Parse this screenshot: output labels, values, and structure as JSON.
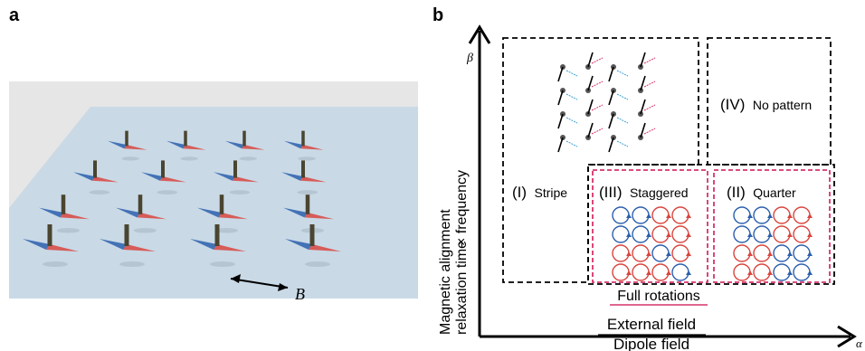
{
  "panels": {
    "a": {
      "label": "a",
      "field_label": "B"
    },
    "b": {
      "label": "b",
      "y_symbol": "β",
      "x_symbol": "α",
      "y_axis_line1": "Magnetic alignment",
      "y_axis_line2": "relaxation time",
      "y_axis_suffix": "× frequency",
      "x_axis_numerator": "External field",
      "x_axis_denominator": "Dipole field",
      "regions": {
        "stripe_roman": "(I)",
        "stripe_name": "Stripe",
        "staggered_roman": "(III)",
        "staggered_name": "Staggered",
        "quarter_roman": "(II)",
        "quarter_name": "Quarter",
        "none_roman": "(IV)",
        "none_name": "No pattern"
      },
      "full_rotations": "Full rotations"
    }
  },
  "colors": {
    "red": "#d9453e",
    "blue": "#2b5fad",
    "pink_dash": "#d6336c",
    "surface": "#c9d9e6",
    "background_gray": "#e6e6e6"
  }
}
